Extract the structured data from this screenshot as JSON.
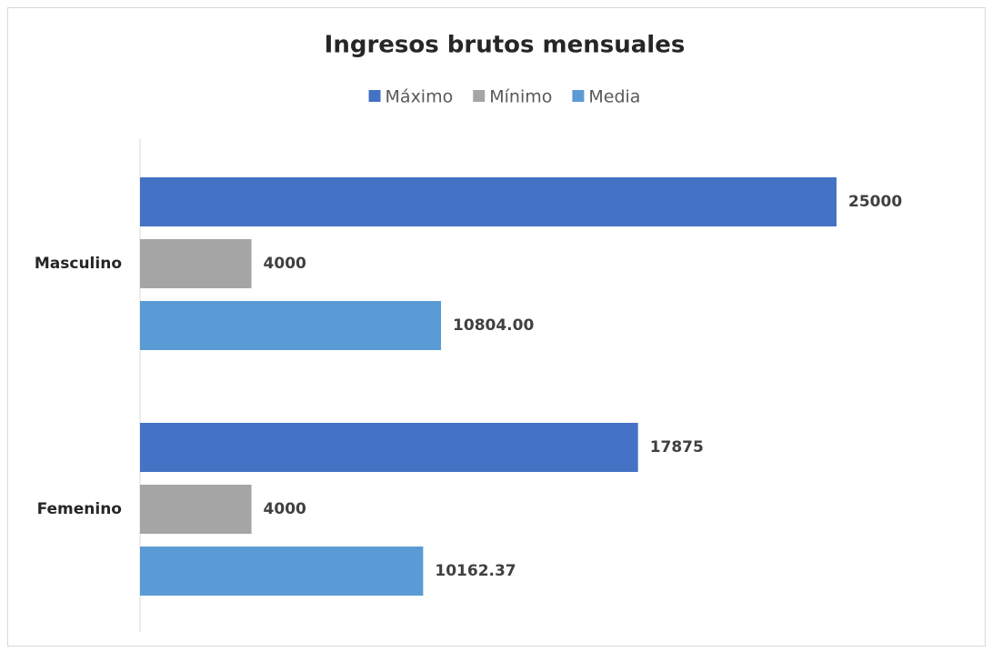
{
  "chart_data": {
    "type": "hbar",
    "title": "Ingresos brutos mensuales",
    "categories": [
      "Masculino",
      "Femenino"
    ],
    "series": [
      {
        "name": "Máximo",
        "color": "#4472c4",
        "values": [
          25000,
          17875
        ]
      },
      {
        "name": "Mínimo",
        "color": "#a5a5a5",
        "values": [
          4000,
          4000
        ]
      },
      {
        "name": "Media",
        "color": "#5b9bd5",
        "values": [
          10804,
          10162.37
        ],
        "value_labels": [
          "10804.00",
          "10162.37"
        ]
      }
    ],
    "xlim": [
      0,
      25000
    ],
    "legend": "top"
  }
}
